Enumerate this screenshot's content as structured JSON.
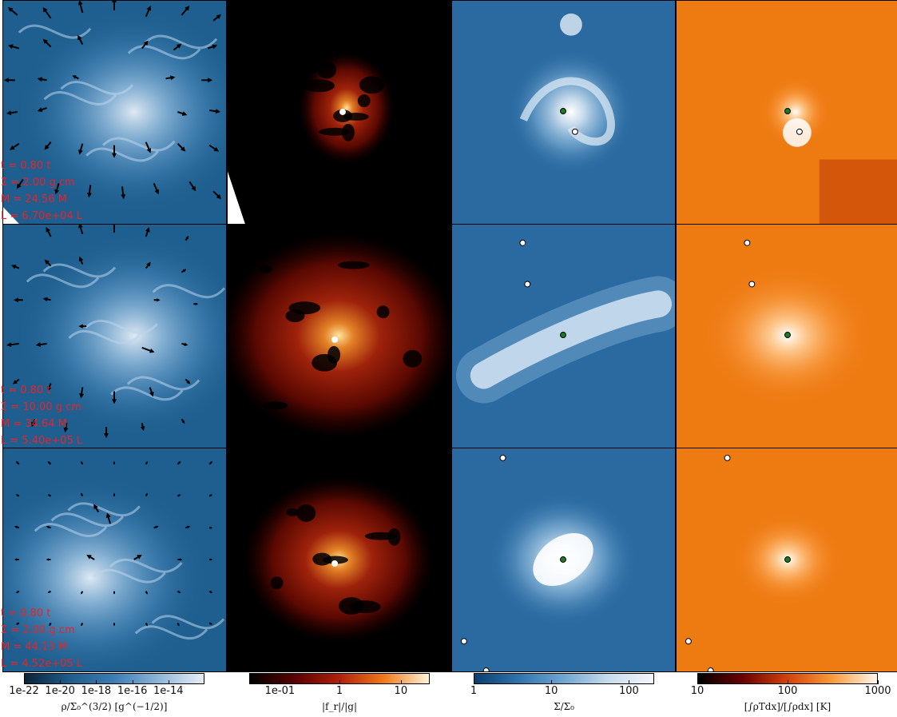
{
  "figure": {
    "rows": [
      {
        "annotations": [
          "t = 0.80 t",
          "Σ = 2.00 g cm",
          "M = 24.56 M",
          "L = 6.70e+04 L"
        ]
      },
      {
        "annotations": [
          "t = 0.80 t",
          "Σ = 10.00 g cm",
          "M = 34.64 M",
          "L = 5.40e+05 L"
        ]
      },
      {
        "annotations": [
          "t = 0.80 t",
          "Σ = 2.00 g cm",
          "M = 44.13 M",
          "L = 4.52e+05 L"
        ]
      }
    ]
  },
  "colorbars": [
    {
      "label": "ρ/Σ₀^(3/2) [g^(−1/2)]",
      "ticks": [
        "1e-22",
        "1e-20",
        "1e-18",
        "1e-16",
        "1e-14"
      ],
      "colors": [
        "#0a2438",
        "#1f5c8a",
        "#3a7db4",
        "#8fb6d8",
        "#e8eef6"
      ]
    },
    {
      "label": "|f_r|/|g|",
      "ticks": [
        "1e-01",
        "1",
        "10"
      ],
      "colors": [
        "#000000",
        "#5a0000",
        "#b0200a",
        "#f07a1a",
        "#fff4d8"
      ]
    },
    {
      "label": "Σ/Σ₀",
      "ticks": [
        "1",
        "10",
        "100"
      ],
      "colors": [
        "#0b3e6e",
        "#2f74ad",
        "#6fa6d2",
        "#c9dcee",
        "#f4f6fa"
      ]
    },
    {
      "label": "[∫ρTdx]/[∫ρdx] [K]",
      "ticks": [
        "10",
        "100",
        "1000"
      ],
      "colors": [
        "#000000",
        "#6b0000",
        "#d4420a",
        "#fb9a3a",
        "#fff8ee"
      ]
    }
  ],
  "colors": {
    "annotation": "#e8232a",
    "star_primary": "#1f7a1f",
    "star_secondary": "#ffffff"
  }
}
